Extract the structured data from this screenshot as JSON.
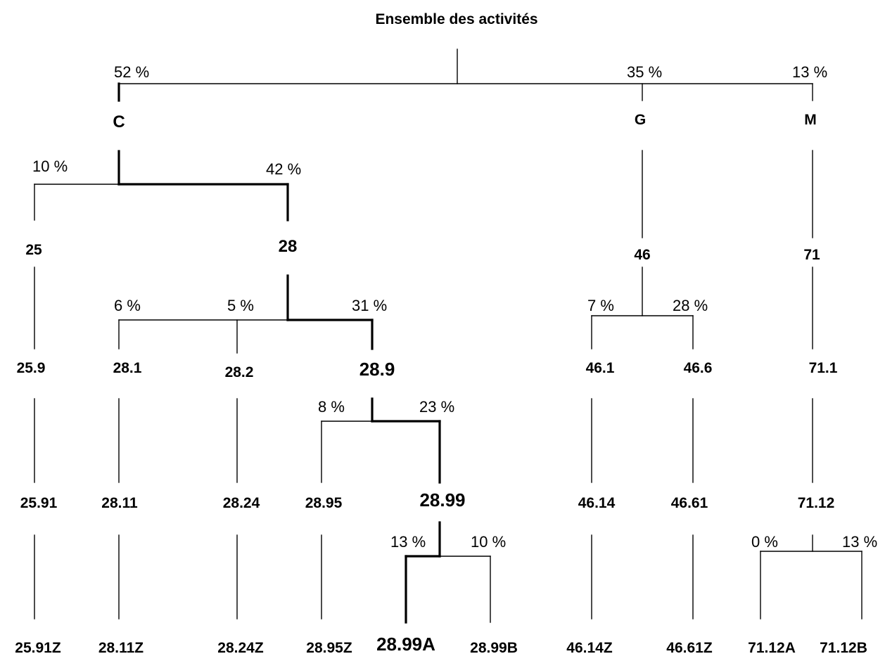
{
  "title": "Ensemble des activités",
  "sections": {
    "C": {
      "label": "C",
      "pct": "52 %"
    },
    "G": {
      "label": "G",
      "pct": "35 %"
    },
    "M": {
      "label": "M",
      "pct": "13 %"
    }
  },
  "divisions": {
    "d25": {
      "label": "25",
      "pct": "10 %"
    },
    "d28": {
      "label": "28",
      "pct": "42 %"
    },
    "d46": {
      "label": "46"
    },
    "d71": {
      "label": "71"
    }
  },
  "groups": {
    "g259": {
      "label": "25.9"
    },
    "g281": {
      "label": "28.1",
      "pct": "6 %"
    },
    "g282": {
      "label": "28.2",
      "pct": "5 %"
    },
    "g289": {
      "label": "28.9",
      "pct": "31 %"
    },
    "g461": {
      "label": "46.1",
      "pct": "7 %"
    },
    "g466": {
      "label": "46.6",
      "pct": "28 %"
    },
    "g711": {
      "label": "71.1"
    }
  },
  "classes": {
    "c2591": {
      "label": "25.91"
    },
    "c2811": {
      "label": "28.11"
    },
    "c2824": {
      "label": "28.24"
    },
    "c2895": {
      "label": "28.95",
      "pct": "8 %"
    },
    "c2899": {
      "label": "28.99",
      "pct": "23 %"
    },
    "c4614": {
      "label": "46.14"
    },
    "c4661": {
      "label": "46.61"
    },
    "c7112": {
      "label": "71.12"
    }
  },
  "subclasses": {
    "s2591Z": {
      "label": "25.91Z"
    },
    "s2811Z": {
      "label": "28.11Z"
    },
    "s2824Z": {
      "label": "28.24Z"
    },
    "s2895Z": {
      "label": "28.95Z"
    },
    "s2899A": {
      "label": "28.99A",
      "pct": "13 %"
    },
    "s2899B": {
      "label": "28.99B",
      "pct": "10 %"
    },
    "s4614Z": {
      "label": "46.14Z"
    },
    "s4661Z": {
      "label": "46.61Z"
    },
    "s7112A": {
      "label": "71.12A",
      "pct": "0 %"
    },
    "s7112B": {
      "label": "71.12B",
      "pct": "13 %"
    }
  }
}
